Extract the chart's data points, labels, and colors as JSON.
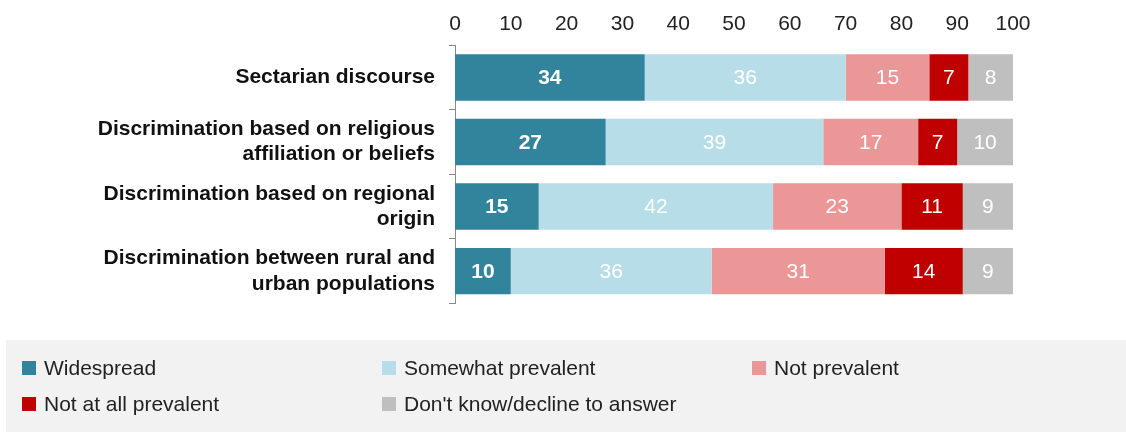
{
  "chart_data": {
    "type": "bar",
    "orientation": "horizontal",
    "stacked": true,
    "data_labels": true,
    "grid": false,
    "legend": "bottom",
    "categories": [
      "Sectarian discourse",
      "Discrimination based on religious affiliation or beliefs",
      "Discrimination based on regional origin",
      "Discrimination between rural and urban populations"
    ],
    "xlim": [
      0,
      100
    ],
    "xticks": [
      0,
      10,
      20,
      30,
      40,
      50,
      60,
      70,
      80,
      90,
      100
    ],
    "series": [
      {
        "name": "Widespread",
        "color": "#31849b",
        "values": [
          34,
          27,
          15,
          10
        ]
      },
      {
        "name": "Somewhat prevalent",
        "color": "#b7dee8",
        "values": [
          36,
          39,
          42,
          36
        ]
      },
      {
        "name": "Not prevalent",
        "color": "#eb9697",
        "values": [
          15,
          17,
          23,
          31
        ]
      },
      {
        "name": "Not at all prevalent",
        "color": "#c00000",
        "values": [
          7,
          7,
          11,
          14
        ]
      },
      {
        "name": "Don't know/decline to answer",
        "color": "#bfbfbf",
        "values": [
          8,
          10,
          9,
          9
        ]
      }
    ]
  }
}
